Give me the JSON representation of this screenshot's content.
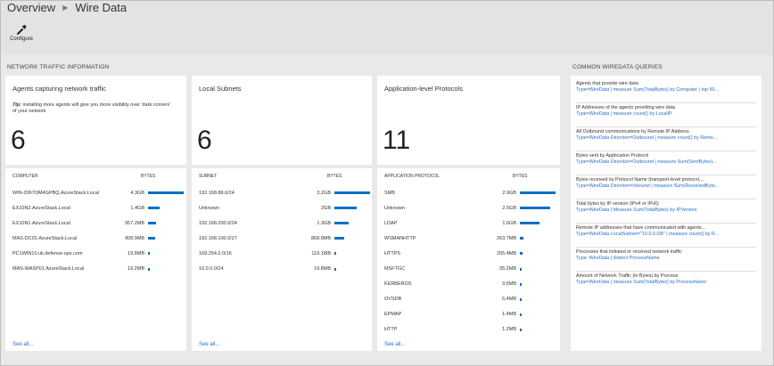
{
  "breadcrumb": {
    "root": "Overview",
    "current": "Wire Data"
  },
  "toolbar": {
    "configure_label": "Configure"
  },
  "sections": {
    "network": "NETWORK TRAFFIC INFORMATION",
    "queries": "COMMON WIREDATA QUERIES"
  },
  "accent_color": "#0b6fc7",
  "panels": [
    {
      "title": "Agents capturing network traffic",
      "tip_label": "Tip:",
      "tip_text": " installing more agents will give you more visibility over 'dark corners' of your network",
      "count": "6",
      "col1": "COMPUTER",
      "col2": "BYTES",
      "rows": [
        {
          "name": "WIN-2067OM4GPBQ.AzureStack.Local",
          "value": "4.3GB",
          "fraction": 1.0
        },
        {
          "name": "EX10N2.AzureStack.Local",
          "value": "1.4GB",
          "fraction": 0.33
        },
        {
          "name": "EX10N1.AzureStack.Local",
          "value": "957.2MB",
          "fraction": 0.22
        },
        {
          "name": "MAS-DC01.AzureStack.Local",
          "value": "908.9MB",
          "fraction": 0.21
        },
        {
          "name": "PC1WIN10.uk.defense-ops.com",
          "value": "19.9MB",
          "fraction": 0.01
        },
        {
          "name": "MAS-WASP01.AzureStack.Local",
          "value": "19.2MB",
          "fraction": 0.01
        }
      ],
      "see_all": "See all..."
    },
    {
      "title": "Local Subnets",
      "count": "6",
      "col1": "SUBNET",
      "col2": "BYTES",
      "rows": [
        {
          "name": "192.168.88.0/24",
          "value": "3.2GB",
          "fraction": 1.0
        },
        {
          "name": "Unknown",
          "value": "2GB",
          "fraction": 0.62
        },
        {
          "name": "192.168.200.0/24",
          "value": "1.3GB",
          "fraction": 0.41
        },
        {
          "name": "192.168.100.0/27",
          "value": "868.8MB",
          "fraction": 0.27
        },
        {
          "name": "169.254.0.0/16",
          "value": "119.1MB",
          "fraction": 0.04
        },
        {
          "name": "10.0.0.0/24",
          "value": "19.8MB",
          "fraction": 0.01
        }
      ],
      "see_all": "See all..."
    },
    {
      "title": "Application-level Protocols",
      "count": "11",
      "col1": "APPLICATION PROTOCOL",
      "col2": "BYTES",
      "rows": [
        {
          "name": "SMB",
          "value": "2.9GB",
          "fraction": 1.0
        },
        {
          "name": "Unknown",
          "value": "2.5GB",
          "fraction": 0.86
        },
        {
          "name": "LDAP",
          "value": "1.6GB",
          "fraction": 0.55
        },
        {
          "name": "WSMANHTTP",
          "value": "263.7MB",
          "fraction": 0.09
        },
        {
          "name": "HTTPS",
          "value": "205.4MB",
          "fraction": 0.07
        },
        {
          "name": "MSFTGC",
          "value": "35.2MB",
          "fraction": 0.012
        },
        {
          "name": "KERBEROS",
          "value": "9.5MB",
          "fraction": 0.004
        },
        {
          "name": "OVSDB",
          "value": "5.4MB",
          "fraction": 0.003
        },
        {
          "name": "EPMAP",
          "value": "1.4MB",
          "fraction": 0.002
        },
        {
          "name": "HTTP",
          "value": "1.2MB",
          "fraction": 0.002
        }
      ],
      "see_all": "See all..."
    }
  ],
  "queries": [
    {
      "title": "Agents that provide wire data",
      "code": "Type=WireData | measure Sum(TotalBytes) by Computer | top 50..."
    },
    {
      "title": "IP Addresses of the agents providing wire data",
      "code": "Type=WireData | measure count() by LocalIP"
    },
    {
      "title": "All Outbound communications by Remote IP Address",
      "code": "Type=WireData Direction=Outbound | measure count() by Remo..."
    },
    {
      "title": "Bytes sent by Application Protocol",
      "code": "Type=WireData Direction=Outbound | measure Sum(SentBytes)..."
    },
    {
      "title": "Bytes received by Protocol Name (transport-level protocol,...",
      "code": "Type=WireData Direction=Inbound | measure Sum(ReceivedByte..."
    },
    {
      "title": "Total bytes by IP version (IPv4 or IPv6)",
      "code": "Type=WireData | Measure Sum(TotalBytes) by IPVersion"
    },
    {
      "title": "Remote IP addresses that have communicated with agents...",
      "code": "Type=WireData LocalSubnet=\"10.0.0.0/8\" | measure count() by R..."
    },
    {
      "title": "Processes that initiated or received network traffic",
      "code": "Type: WireData | distinct ProcessName"
    },
    {
      "title": "Amount of Network Traffic (in Bytes) by Process",
      "code": "Type=WireData | measure Sum(TotalBytes) by ProcessName"
    }
  ]
}
